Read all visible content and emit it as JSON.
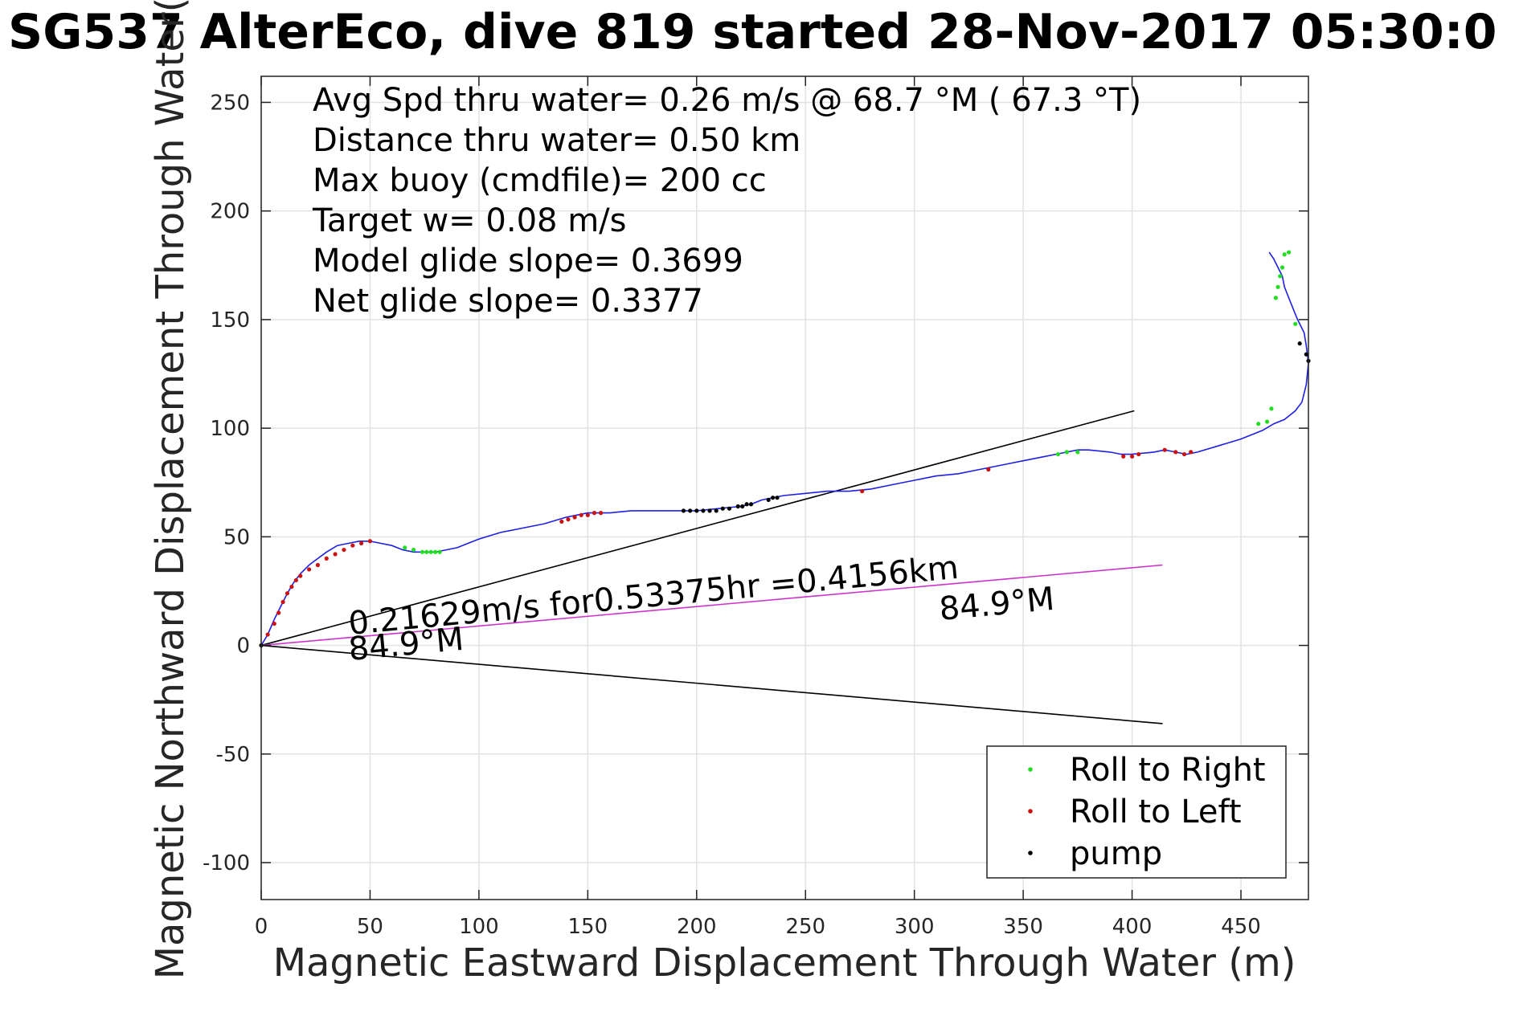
{
  "chart_data": {
    "type": "scatter",
    "title": "SG537 AlterEco, dive 819 started 28-Nov-2017 05:30:0",
    "xlabel": "Magnetic Eastward Displacement Through Water (m)",
    "ylabel": "Magnetic Northward Displacement Through Water(",
    "xlim": [
      0,
      481
    ],
    "ylim": [
      -117,
      262
    ],
    "xticks": [
      0,
      50,
      100,
      150,
      200,
      250,
      300,
      350,
      400,
      450
    ],
    "yticks": [
      -100,
      -50,
      0,
      50,
      100,
      150,
      200,
      250
    ],
    "grid": true,
    "legend_placement": "bottom-right",
    "info_lines": [
      "Avg Spd thru water=  0.26 m/s @  68.7 °M ( 67.3 °T)",
      "Distance thru water=  0.50 km",
      "Max buoy (cmdfile)= 200 cc",
      "Target w= 0.08 m/s",
      "Model glide slope= 0.3699",
      "Net glide slope= 0.3377"
    ],
    "annotations": {
      "speed_label": "0.21629m/s for0.53375hr =0.4156km",
      "heading_near_origin": "84.9°M",
      "heading_far": "84.9°M"
    },
    "colors": {
      "track": "#1f1fe6",
      "roll_right": "#22dd22",
      "roll_left": "#cc1111",
      "pump": "#000000",
      "heading_line": "#cc33cc",
      "cone_lines": "#000000",
      "grid": "#e2e2e2"
    },
    "track": {
      "name": "track",
      "x": [
        0,
        3,
        6,
        9,
        12,
        15,
        18,
        22,
        26,
        30,
        35,
        40,
        45,
        50,
        55,
        60,
        65,
        70,
        75,
        80,
        85,
        90,
        95,
        100,
        110,
        120,
        130,
        140,
        145,
        150,
        155,
        160,
        170,
        180,
        190,
        200,
        210,
        220,
        225,
        230,
        240,
        250,
        260,
        270,
        280,
        290,
        300,
        310,
        320,
        330,
        340,
        350,
        360,
        365,
        370,
        375,
        380,
        390,
        395,
        400,
        410,
        415,
        420,
        425,
        430,
        440,
        450,
        460,
        465,
        470,
        475,
        478,
        480,
        481,
        480,
        479,
        476,
        474,
        472,
        470,
        469,
        467,
        465,
        463
      ],
      "y": [
        0,
        5,
        12,
        18,
        24,
        29,
        33,
        37,
        40,
        43,
        46,
        47,
        48,
        48,
        47,
        46,
        44,
        43,
        43,
        43,
        44,
        45,
        47,
        49,
        52,
        54,
        56,
        59,
        60,
        61,
        61,
        61,
        62,
        62,
        62,
        62,
        63,
        64,
        65,
        67,
        69,
        70,
        71,
        71,
        72,
        74,
        76,
        78,
        79,
        81,
        83,
        85,
        87,
        88,
        89,
        90,
        90,
        89,
        88,
        88,
        89,
        90,
        89,
        88,
        89,
        92,
        95,
        99,
        102,
        104,
        108,
        112,
        120,
        130,
        138,
        144,
        150,
        155,
        160,
        165,
        170,
        174,
        178,
        181
      ]
    },
    "series": [
      {
        "name": "Roll to Right",
        "marker": "roll_right",
        "x": [
          66,
          70,
          74,
          76,
          78,
          80,
          82,
          366,
          370,
          375,
          458,
          462,
          464,
          466,
          467,
          468,
          469,
          470,
          472,
          475
        ],
        "y": [
          45,
          44,
          43,
          43,
          43,
          43,
          43,
          88,
          89,
          89,
          102,
          103,
          109,
          160,
          165,
          170,
          174,
          180,
          181,
          148
        ]
      },
      {
        "name": "Roll to Left",
        "marker": "roll_left",
        "x": [
          3,
          6,
          8,
          10,
          12,
          14,
          16,
          18,
          22,
          26,
          30,
          34,
          38,
          42,
          46,
          50,
          138,
          141,
          144,
          147,
          150,
          153,
          156,
          276,
          334,
          396,
          400,
          403,
          415,
          420,
          424,
          427
        ],
        "y": [
          5,
          10,
          15,
          20,
          24,
          27,
          30,
          32,
          35,
          37,
          40,
          42,
          44,
          46,
          47,
          48,
          57,
          58,
          59,
          60,
          60,
          61,
          61,
          71,
          81,
          87,
          87,
          88,
          90,
          89,
          88,
          89
        ]
      },
      {
        "name": "pump",
        "marker": "pump",
        "x": [
          0,
          194,
          197,
          200,
          203,
          206,
          209,
          212,
          215,
          219,
          221,
          223,
          225,
          233,
          235,
          237,
          477,
          480,
          481
        ],
        "y": [
          0,
          62,
          62,
          62,
          62,
          62,
          62,
          63,
          63,
          64,
          64,
          65,
          65,
          67,
          68,
          68,
          139,
          134,
          131
        ]
      }
    ],
    "reference_lines": [
      {
        "name": "cone-upper",
        "x": [
          0,
          401
        ],
        "y": [
          0,
          108
        ]
      },
      {
        "name": "cone-lower",
        "x": [
          0,
          414
        ],
        "y": [
          0,
          -36
        ]
      },
      {
        "name": "net-heading",
        "x": [
          0,
          414
        ],
        "y": [
          0,
          37
        ]
      }
    ]
  }
}
